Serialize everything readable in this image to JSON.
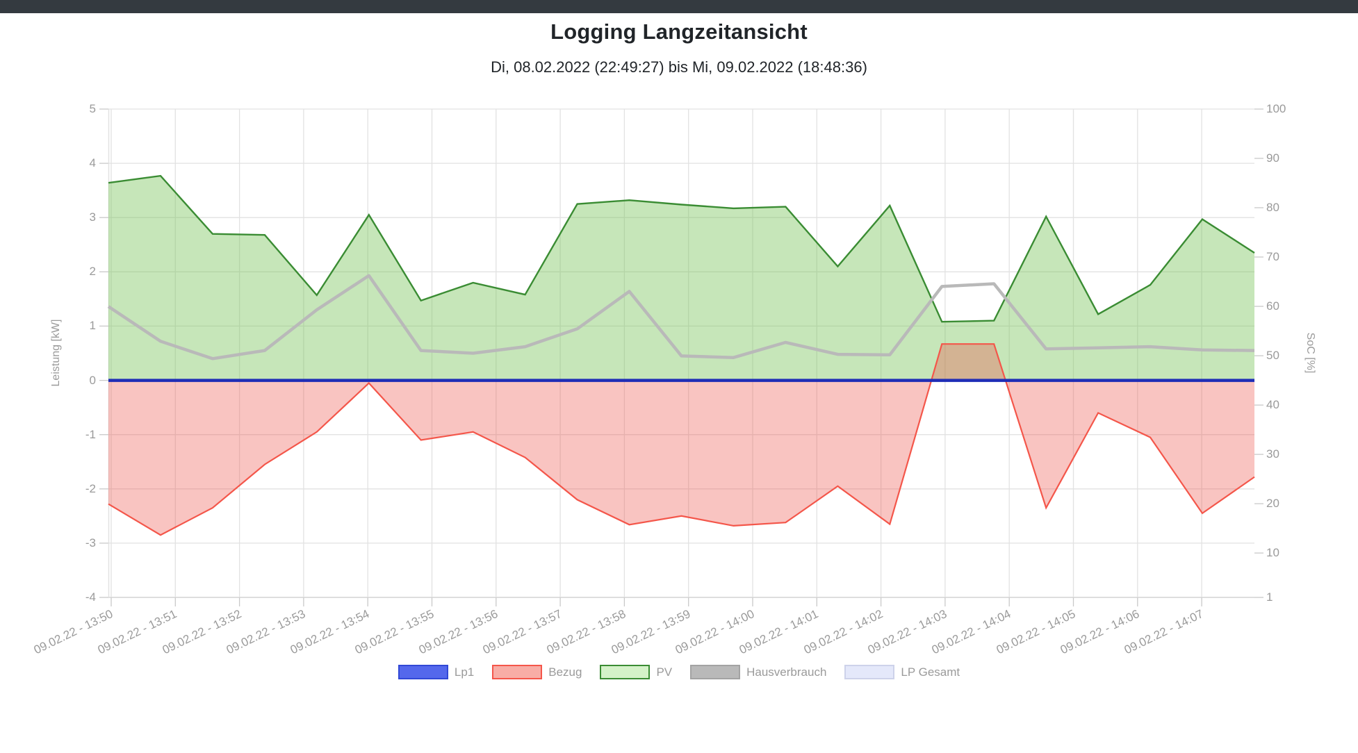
{
  "window": {
    "topbar_color": "#343a40"
  },
  "header": {
    "title": "Logging Langzeitansicht",
    "subtitle": "Di, 08.02.2022 (22:49:27) bis Mi, 09.02.2022 (18:48:36)"
  },
  "axes": {
    "left": {
      "title": "Leistung [kW]",
      "ticks": [
        5,
        4,
        3,
        2,
        1,
        0,
        -1,
        -2,
        -3,
        -4
      ],
      "range": [
        5,
        -4
      ]
    },
    "right": {
      "title": "SoC [%]",
      "ticks": [
        100,
        90,
        80,
        70,
        60,
        50,
        40,
        30,
        20,
        10,
        1
      ],
      "range": [
        100,
        1
      ]
    },
    "x": {
      "tick_labels": [
        "09.02.22 - 13:50",
        "09.02.22 - 13:51",
        "09.02.22 - 13:52",
        "09.02.22 - 13:53",
        "09.02.22 - 13:54",
        "09.02.22 - 13:55",
        "09.02.22 - 13:56",
        "09.02.22 - 13:57",
        "09.02.22 - 13:58",
        "09.02.22 - 13:59",
        "09.02.22 - 14:00",
        "09.02.22 - 14:01",
        "09.02.22 - 14:02",
        "09.02.22 - 14:03",
        "09.02.22 - 14:04",
        "09.02.22 - 14:05",
        "09.02.22 - 14:06",
        "09.02.22 - 14:07"
      ]
    }
  },
  "legend": {
    "items": [
      {
        "label": "Lp1",
        "fill": "#5468ec",
        "border": "#3148d6"
      },
      {
        "label": "Bezug",
        "fill": "#f8ada6",
        "border": "#f4564a"
      },
      {
        "label": "PV",
        "fill": "#d4f2c8",
        "border": "#3a8c33"
      },
      {
        "label": "Hausverbrauch",
        "fill": "#b9b9b9",
        "border": "#a3a3a3"
      },
      {
        "label": "LP Gesamt",
        "fill": "#e4e8fa",
        "border": "#cdd2ea"
      }
    ]
  },
  "chart_data": {
    "type": "area",
    "title": "Logging Langzeitansicht",
    "subtitle": "Di, 08.02.2022 (22:49:27) bis Mi, 09.02.2022 (18:48:36)",
    "xlabel_ticks_minutes": [
      "13:50",
      "13:51",
      "13:52",
      "13:53",
      "13:54",
      "13:55",
      "13:56",
      "13:57",
      "13:58",
      "13:59",
      "14:00",
      "14:01",
      "14:02",
      "14:03",
      "14:04",
      "14:05",
      "14:06",
      "14:07"
    ],
    "ylabel_left": "Leistung [kW]",
    "ylabel_right": "SoC [%]",
    "ylim_left": [
      -4,
      5
    ],
    "ylim_right": [
      1,
      100
    ],
    "grid": true,
    "legend_position": "bottom",
    "sample_interval_seconds": 49,
    "x_start": "09.02.22 13:50",
    "x_end": "09.02.22 ~14:07:45",
    "series": [
      {
        "name": "PV",
        "unit": "kW",
        "style": "area",
        "line_color": "#3a8c33",
        "fill_color": "rgba(120,196,88,0.42)",
        "values": [
          3.64,
          3.77,
          2.7,
          2.68,
          1.57,
          3.05,
          1.47,
          1.8,
          1.58,
          3.25,
          3.32,
          3.24,
          3.17,
          3.2,
          2.1,
          3.22,
          1.08,
          1.1,
          3.02,
          1.22,
          1.76,
          2.97,
          2.35
        ]
      },
      {
        "name": "Bezug",
        "unit": "kW",
        "style": "area",
        "line_color": "#f4564a",
        "fill_color": "rgba(238,83,72,0.34)",
        "values": [
          -2.28,
          -2.85,
          -2.35,
          -1.55,
          -0.95,
          -0.05,
          -1.1,
          -0.95,
          -1.42,
          -2.2,
          -2.66,
          -2.5,
          -2.68,
          -2.62,
          -1.95,
          -2.65,
          0.67,
          0.67,
          -2.35,
          -0.6,
          -1.05,
          -2.45,
          -1.78
        ]
      },
      {
        "name": "Hausverbrauch",
        "unit": "kW",
        "style": "line",
        "line_color": "#b9b9b9",
        "values": [
          1.36,
          0.72,
          0.4,
          0.55,
          1.3,
          1.93,
          0.55,
          0.5,
          0.62,
          0.95,
          1.64,
          0.45,
          0.42,
          0.7,
          0.48,
          0.47,
          1.73,
          1.78,
          0.58,
          0.6,
          0.62,
          0.56,
          0.55
        ]
      },
      {
        "name": "Lp1",
        "unit": "kW",
        "style": "line",
        "line_color": "#1e2db6",
        "values": [
          0,
          0,
          0,
          0,
          0,
          0,
          0,
          0,
          0,
          0,
          0,
          0,
          0,
          0,
          0,
          0,
          0,
          0,
          0,
          0,
          0,
          0,
          0
        ]
      },
      {
        "name": "LP Gesamt",
        "unit": "kW",
        "style": "line",
        "line_color": "#e4e8fa",
        "values": [
          0,
          0,
          0,
          0,
          0,
          0,
          0,
          0,
          0,
          0,
          0,
          0,
          0,
          0,
          0,
          0,
          0,
          0,
          0,
          0,
          0,
          0,
          0
        ]
      }
    ]
  },
  "layout_colors": {
    "grid": "#e2e2e2",
    "axis_line": "#c9c9c9",
    "text_gray": "#9a9a9a"
  }
}
